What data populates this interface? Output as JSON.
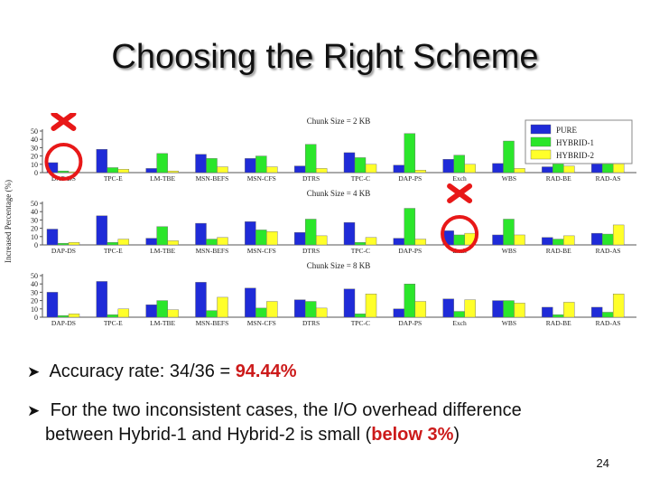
{
  "slide": {
    "title": "Choosing the Right Scheme",
    "bullets": [
      {
        "prefix": "Accuracy rate: 34/36 = ",
        "highlight": "94.44%",
        "suffix": "",
        "second_line": ""
      },
      {
        "prefix": "For the two inconsistent cases, the I/O overhead difference",
        "highlight": "below 3%",
        "suffix": ")",
        "second_line": "between Hybrid-1 and Hybrid-2 is small ("
      }
    ],
    "page_number": "24"
  },
  "colors": {
    "pure": "#1f2bd8",
    "hybrid1": "#2be62b",
    "hybrid2": "#ffff2a",
    "mark": "#e81818"
  },
  "chart_data": {
    "type": "bar",
    "ylabel": "Increased Percentage (%)",
    "categories": [
      "DAP-DS",
      "TPC-E",
      "LM-TBE",
      "MSN-BEFS",
      "MSN-CFS",
      "DTRS",
      "TPC-C",
      "DAP-PS",
      "Exch",
      "WBS",
      "RAD-BE",
      "RAD-AS"
    ],
    "legend": {
      "position": "top-right",
      "entries": [
        "PURE",
        "HYBRID-1",
        "HYBRID-2"
      ]
    },
    "ylim": [
      0,
      50
    ],
    "yticks": [
      "0",
      "10",
      "20",
      "30",
      "40",
      "50"
    ],
    "panels": [
      {
        "title": "Chunk Size = 2 KB",
        "series": [
          {
            "name": "PURE",
            "values": [
              12,
              28,
              5,
              22,
              17,
              8,
              24,
              9,
              16,
              11,
              7,
              13
            ]
          },
          {
            "name": "HYBRID-1",
            "values": [
              2,
              6,
              23,
              17,
              20,
              34,
              18,
              47,
              21,
              38,
              12,
              21
            ]
          },
          {
            "name": "HYBRID-2",
            "values": [
              1,
              4,
              2,
              7,
              7,
              5,
              10,
              3,
              10,
              5,
              8,
              17
            ]
          }
        ]
      },
      {
        "title": "Chunk Size = 4 KB",
        "series": [
          {
            "name": "PURE",
            "values": [
              19,
              35,
              8,
              26,
              28,
              15,
              27,
              8,
              17,
              12,
              9,
              14
            ]
          },
          {
            "name": "HYBRID-1",
            "values": [
              2,
              3,
              22,
              7,
              18,
              31,
              3,
              44,
              12,
              31,
              7,
              13
            ]
          },
          {
            "name": "HYBRID-2",
            "values": [
              3,
              7,
              5,
              9,
              16,
              11,
              9,
              7,
              14,
              12,
              11,
              24
            ]
          }
        ]
      },
      {
        "title": "Chunk Size = 8 KB",
        "series": [
          {
            "name": "PURE",
            "values": [
              30,
              43,
              15,
              42,
              35,
              21,
              34,
              10,
              22,
              20,
              12,
              12
            ]
          },
          {
            "name": "HYBRID-1",
            "values": [
              2,
              3,
              20,
              8,
              11,
              19,
              4,
              40,
              7,
              20,
              3,
              6
            ]
          },
          {
            "name": "HYBRID-2",
            "values": [
              4,
              10,
              9,
              24,
              19,
              11,
              28,
              19,
              21,
              17,
              18,
              28
            ]
          }
        ]
      }
    ],
    "annotations": [
      {
        "panel": 0,
        "category": "DAP-DS",
        "mark": "inconsistent"
      },
      {
        "panel": 1,
        "category": "Exch",
        "mark": "inconsistent"
      }
    ]
  }
}
